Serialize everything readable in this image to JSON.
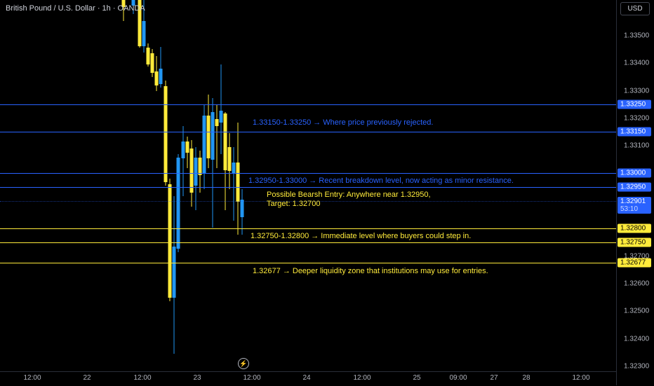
{
  "header": {
    "title": "British Pound / U.S. Dollar · 1h · OANDA",
    "currency": "USD"
  },
  "price_axis": {
    "ticks": [
      "1.33500",
      "1.33400",
      "1.33300",
      "1.33200",
      "1.33100",
      "1.32700",
      "1.32600",
      "1.32500",
      "1.32400",
      "1.32300"
    ]
  },
  "badges": {
    "b33250": "1.33250",
    "b33150": "1.33150",
    "b33000": "1.33000",
    "b32950": "1.32950",
    "b32800": "1.32800",
    "b32750": "1.32750",
    "b32677": "1.32677"
  },
  "current_price": {
    "price": "1.32901",
    "countdown": "53:10"
  },
  "annotations": {
    "rejected": "1.33150-1.33250 → Where price previously rejected.",
    "breakdown": "1.32950-1.33000 → Recent breakdown level, now acting as minor resistance.",
    "entry_line1": "Possible Bearsh Entry: Anywhere near 1.32950,",
    "entry_line2": "Target: 1.32700",
    "immediate": "1.32750-1.32800 → Immediate level where buyers could step in.",
    "liquidity": "1.32677 → Deeper liquidity zone that institutions may use for entries."
  },
  "time_axis": {
    "labels": [
      "12:00",
      "22",
      "12:00",
      "23",
      "12:00",
      "24",
      "12:00",
      "25",
      "09:00",
      "27",
      "28",
      "12:00"
    ]
  },
  "colors": {
    "up": "#2196f3",
    "down": "#ffeb3b",
    "support": "#ffeb3b",
    "resistance": "#2962ff"
  },
  "icons": {
    "replay": "lightning-replay-icon"
  }
}
